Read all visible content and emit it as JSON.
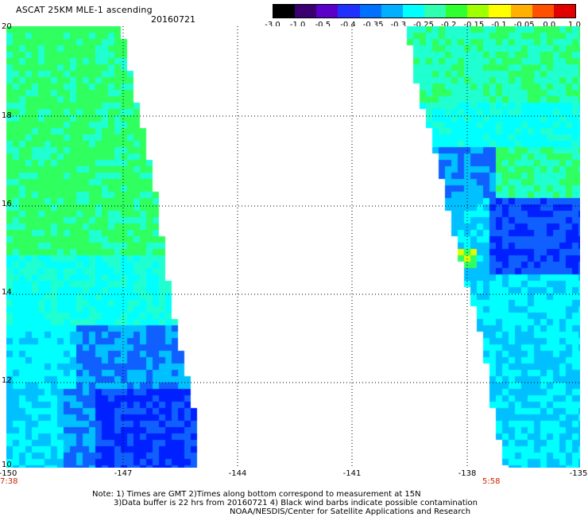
{
  "header": {
    "title": "ASCAT 25KM MLE-1 ascending",
    "date": "20160721"
  },
  "colorbar": {
    "tick_labels": [
      "-3.0",
      "-1.0",
      "-0.5",
      "-0.4",
      "-0.35",
      "-0.3",
      "-0.25",
      "-0.2",
      "-0.15",
      "-0.1",
      "-0.05",
      "0.0",
      "1.0"
    ],
    "colors": [
      "#000000",
      "#3a0070",
      "#5a00c8",
      "#2030ff",
      "#0070ff",
      "#00b0ff",
      "#00ffff",
      "#30ffb0",
      "#30ff30",
      "#a0ff00",
      "#ffff00",
      "#ffb000",
      "#ff5000",
      "#e00000"
    ]
  },
  "axes": {
    "lat_labels": [
      "20",
      "18",
      "16",
      "14",
      "12",
      "10"
    ],
    "lon_labels": [
      "-150",
      "-147",
      "-144",
      "-141",
      "-138",
      "-135"
    ],
    "lat_range": [
      10,
      20
    ],
    "lon_range": [
      -150,
      -135
    ]
  },
  "times": {
    "left": "7:38",
    "right": "5:58"
  },
  "notes": {
    "line1": "Note: 1) Times are GMT 2)Times along bottom correspond to measurement at 15N",
    "line2": "3)Data buffer is 22 hrs from 20160721 4) Black wind barbs indicate possible contamination",
    "line3": "NOAA/NESDIS/Center for Satellite Applications and Research"
  },
  "map": {
    "colors": {
      "green": "#30ff60",
      "cyan_green": "#20ffd0",
      "cyan": "#00ffff",
      "light_blue": "#00c0ff",
      "blue": "#1060ff",
      "dark_blue": "#0020ff",
      "yellow": "#e0ff00"
    }
  }
}
